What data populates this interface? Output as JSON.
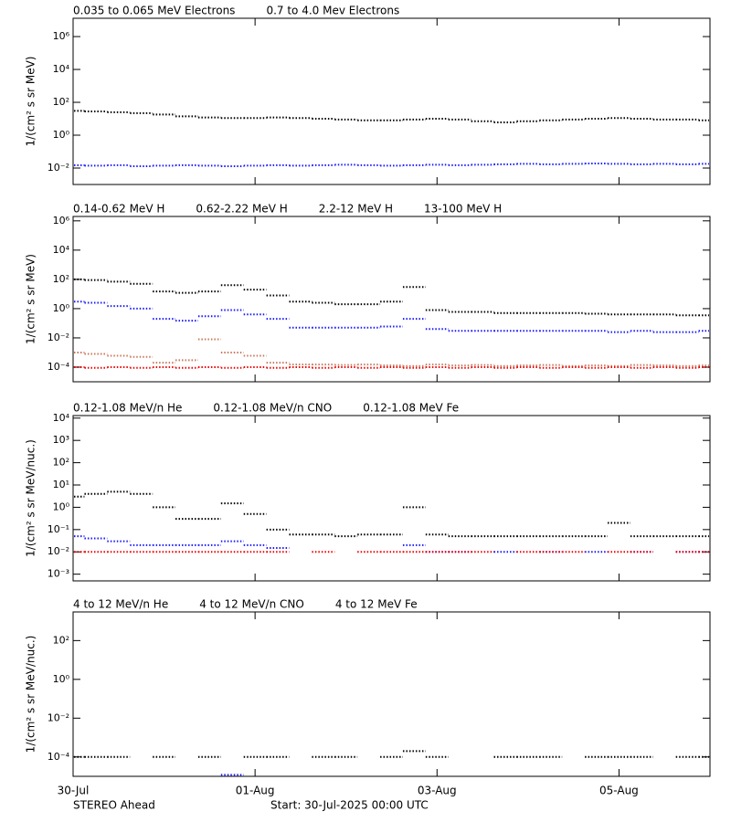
{
  "chart_data": [
    {
      "type": "scatter",
      "log_y": true,
      "ylabel": "1/(cm² s sr MeV)",
      "xlim": [
        0,
        7
      ],
      "xticks": [
        0,
        2,
        4,
        6
      ],
      "ylim": [
        0.001,
        13000000
      ],
      "yticks": [
        {
          "value": 1000000,
          "label": "10⁶"
        },
        {
          "value": 10000,
          "label": "10⁴"
        },
        {
          "value": 100,
          "label": "10²"
        },
        {
          "value": 1,
          "label": "10⁰"
        },
        {
          "value": 0.01,
          "label": "10⁻²"
        }
      ],
      "x": [
        0,
        0.25,
        0.5,
        0.75,
        1,
        1.25,
        1.5,
        1.75,
        2,
        2.25,
        2.5,
        2.75,
        3,
        3.25,
        3.5,
        3.75,
        4,
        4.25,
        4.5,
        4.75,
        5,
        5.25,
        5.5,
        5.75,
        6,
        6.25,
        6.5,
        6.75,
        7
      ],
      "series": [
        {
          "name": "0.035 to 0.065 MeV Electrons",
          "color": "#000000",
          "values": [
            30,
            28,
            25,
            22,
            18,
            14,
            12,
            11,
            11,
            12,
            11,
            10,
            9,
            8,
            8,
            9,
            10,
            9,
            7,
            6,
            7,
            8,
            9,
            10,
            11,
            10,
            9,
            9,
            8
          ]
        },
        {
          "name": "0.7 to 4.0 Mev Electrons",
          "color": "#1a1aff",
          "values": [
            0.015,
            0.014,
            0.015,
            0.013,
            0.014,
            0.015,
            0.014,
            0.013,
            0.014,
            0.015,
            0.014,
            0.015,
            0.016,
            0.015,
            0.014,
            0.015,
            0.016,
            0.015,
            0.016,
            0.017,
            0.018,
            0.017,
            0.018,
            0.019,
            0.018,
            0.017,
            0.018,
            0.017,
            0.018
          ]
        }
      ]
    },
    {
      "type": "scatter",
      "log_y": true,
      "ylabel": "1/(cm² s sr MeV)",
      "xlim": [
        0,
        7
      ],
      "xticks": [
        0,
        2,
        4,
        6
      ],
      "ylim": [
        1e-05,
        2000000
      ],
      "yticks": [
        {
          "value": 1000000,
          "label": "10⁶"
        },
        {
          "value": 10000,
          "label": "10⁴"
        },
        {
          "value": 100,
          "label": "10²"
        },
        {
          "value": 1,
          "label": "10⁰"
        },
        {
          "value": 0.01,
          "label": "10⁻²"
        },
        {
          "value": 0.0001,
          "label": "10⁻⁴"
        }
      ],
      "x": [
        0,
        0.25,
        0.5,
        0.75,
        1,
        1.25,
        1.5,
        1.75,
        2,
        2.25,
        2.5,
        2.75,
        3,
        3.25,
        3.5,
        3.75,
        4,
        4.25,
        4.5,
        4.75,
        5,
        5.25,
        5.5,
        5.75,
        6,
        6.25,
        6.5,
        6.75,
        7
      ],
      "series": [
        {
          "name": "0.14-0.62 MeV H",
          "color": "#000000",
          "values": [
            100,
            90,
            70,
            50,
            15,
            12,
            15,
            40,
            20,
            8,
            3,
            2.5,
            2,
            2,
            3,
            30,
            0.8,
            0.6,
            0.6,
            0.5,
            0.5,
            0.5,
            0.5,
            0.45,
            0.4,
            0.4,
            0.4,
            0.35,
            0.35
          ]
        },
        {
          "name": "0.62-2.22 MeV H",
          "color": "#1a1aff",
          "values": [
            3,
            2.5,
            1.5,
            1,
            0.2,
            0.15,
            0.3,
            0.8,
            0.4,
            0.2,
            0.05,
            0.05,
            0.05,
            0.05,
            0.06,
            0.2,
            0.04,
            0.03,
            0.03,
            0.03,
            0.03,
            0.03,
            0.03,
            0.03,
            0.025,
            0.03,
            0.025,
            0.025,
            0.03
          ]
        },
        {
          "name": "2.2-12 MeV H",
          "color": "#c8785c",
          "values": [
            0.001,
            0.0008,
            0.0006,
            0.0005,
            0.0002,
            0.0003,
            0.008,
            0.001,
            0.0006,
            0.0002,
            0.00015,
            0.00015,
            0.00014,
            0.00015,
            0.00013,
            0.00012,
            0.00015,
            0.00013,
            0.00014,
            0.00012,
            0.00013,
            0.00014,
            0.00012,
            0.00013,
            0.00012,
            0.00014,
            0.00013,
            0.00012,
            0.00013
          ]
        },
        {
          "name": "13-100 MeV H",
          "color": "#ee0000",
          "values": [
            0.0001,
            9e-05,
            0.0001,
            9e-05,
            0.0001,
            9e-05,
            0.0001,
            9e-05,
            0.0001,
            9e-05,
            0.0001,
            9e-05,
            0.0001,
            9e-05,
            0.0001,
            9e-05,
            0.0001,
            9e-05,
            0.0001,
            9e-05,
            0.0001,
            9e-05,
            0.0001,
            9e-05,
            0.0001,
            9e-05,
            0.0001,
            9e-05,
            0.0001
          ]
        }
      ]
    },
    {
      "type": "scatter",
      "log_y": true,
      "ylabel": "1/(cm² s sr MeV/nuc.)",
      "xlim": [
        0,
        7
      ],
      "xticks": [
        0,
        2,
        4,
        6
      ],
      "ylim": [
        0.0005,
        13000
      ],
      "yticks": [
        {
          "value": 10000,
          "label": "10⁴"
        },
        {
          "value": 1000,
          "label": "10³"
        },
        {
          "value": 100,
          "label": "10²"
        },
        {
          "value": 10,
          "label": "10¹"
        },
        {
          "value": 1,
          "label": "10⁰"
        },
        {
          "value": 0.1,
          "label": "10⁻¹"
        },
        {
          "value": 0.01,
          "label": "10⁻²"
        },
        {
          "value": 0.001,
          "label": "10⁻³"
        }
      ],
      "x": [
        0,
        0.25,
        0.5,
        0.75,
        1,
        1.25,
        1.5,
        1.75,
        2,
        2.25,
        2.5,
        2.75,
        3,
        3.25,
        3.5,
        3.75,
        4,
        4.25,
        4.5,
        4.75,
        5,
        5.25,
        5.5,
        5.75,
        6,
        6.25,
        6.5,
        6.75,
        7
      ],
      "series": [
        {
          "name": "0.12-1.08 MeV/n He",
          "color": "#000000",
          "values": [
            3,
            4,
            5,
            4,
            1,
            0.3,
            0.3,
            1.5,
            0.5,
            0.1,
            0.06,
            0.06,
            0.05,
            0.06,
            0.06,
            1,
            0.06,
            0.05,
            0.05,
            0.05,
            0.05,
            0.05,
            0.05,
            0.05,
            0.2,
            0.05,
            0.05,
            0.05,
            0.05
          ]
        },
        {
          "name": "0.12-1.08 MeV/n CNO",
          "color": "#1a1aff",
          "values": [
            0.05,
            0.04,
            0.03,
            0.02,
            0.02,
            0.02,
            0.02,
            0.03,
            0.02,
            0.015,
            null,
            null,
            null,
            null,
            null,
            0.02,
            0.01,
            0.01,
            null,
            0.01,
            null,
            0.01,
            null,
            0.01,
            null,
            0.01,
            null,
            0.01,
            0.01
          ]
        },
        {
          "name": "0.12-1.08 MeV Fe",
          "color": "#ee0000",
          "values": [
            0.01,
            0.01,
            0.01,
            0.01,
            0.01,
            0.01,
            0.01,
            0.01,
            0.01,
            0.01,
            null,
            0.01,
            null,
            0.01,
            0.01,
            0.01,
            0.01,
            0.01,
            0.01,
            null,
            0.01,
            0.01,
            0.01,
            null,
            0.01,
            0.01,
            null,
            0.01,
            0.01
          ]
        }
      ]
    },
    {
      "type": "scatter",
      "log_y": true,
      "ylabel": "1/(cm² s sr MeV/nuc.)",
      "xlim": [
        0,
        7
      ],
      "xticks": [
        {
          "value": 0,
          "label": "30-Jul"
        },
        {
          "value": 2,
          "label": "01-Aug"
        },
        {
          "value": 4,
          "label": "03-Aug"
        },
        {
          "value": 6,
          "label": "05-Aug"
        }
      ],
      "ylim": [
        1e-05,
        3000
      ],
      "yticks": [
        {
          "value": 100,
          "label": "10²"
        },
        {
          "value": 1,
          "label": "10⁰"
        },
        {
          "value": 0.01,
          "label": "10⁻²"
        },
        {
          "value": 0.0001,
          "label": "10⁻⁴"
        }
      ],
      "x": [
        0,
        0.25,
        0.5,
        0.75,
        1,
        1.25,
        1.5,
        1.75,
        2,
        2.25,
        2.5,
        2.75,
        3,
        3.25,
        3.5,
        3.75,
        4,
        4.25,
        4.5,
        4.75,
        5,
        5.25,
        5.5,
        5.75,
        6,
        6.25,
        6.5,
        6.75,
        7
      ],
      "series": [
        {
          "name": "4 to 12 MeV/n He",
          "color": "#000000",
          "values": [
            0.0001,
            0.0001,
            0.0001,
            null,
            0.0001,
            null,
            0.0001,
            null,
            0.0001,
            0.0001,
            null,
            0.0001,
            0.0001,
            null,
            0.0001,
            0.0002,
            0.0001,
            null,
            null,
            0.0001,
            0.0001,
            0.0001,
            null,
            0.0001,
            0.0001,
            0.0001,
            null,
            0.0001,
            0.0001
          ]
        },
        {
          "name": "4 to 12 MeV/n CNO",
          "color": "#1a1aff",
          "values": [
            null,
            null,
            null,
            null,
            null,
            null,
            null,
            1.2e-05,
            null,
            null,
            null,
            null,
            null,
            null,
            null,
            null,
            null,
            null,
            null,
            null,
            null,
            null,
            null,
            null,
            null,
            null,
            null,
            null,
            null
          ]
        },
        {
          "name": "4 to 12 MeV Fe",
          "color": "#ee0000",
          "values": [
            null,
            null,
            null,
            null,
            null,
            null,
            null,
            null,
            null,
            null,
            null,
            null,
            null,
            null,
            null,
            null,
            null,
            null,
            null,
            null,
            null,
            null,
            null,
            null,
            null,
            null,
            null,
            null,
            null
          ]
        }
      ]
    }
  ],
  "footer": {
    "left": "STEREO Ahead",
    "right": "Start: 30-Jul-2025 00:00 UTC"
  }
}
